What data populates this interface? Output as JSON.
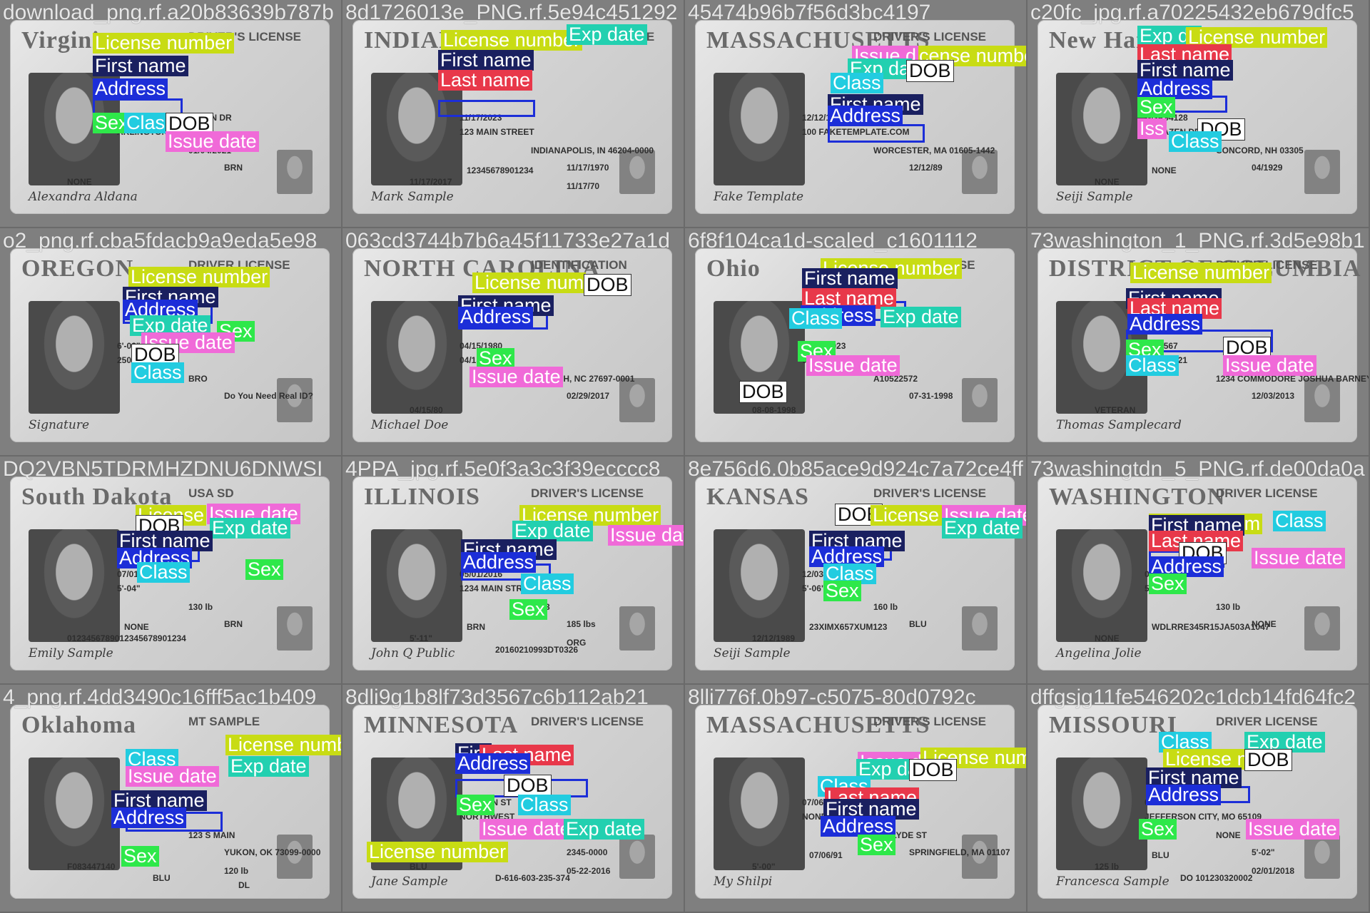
{
  "colors": {
    "license_number": "#c8dc14",
    "first_name": "#1a2060",
    "last_name": "#e8384a",
    "address": "#1c2ed8",
    "sex": "#2ee84a",
    "class": "#22cce0",
    "dob": "#ffffff",
    "issue_date": "#f06ad8",
    "exp_date": "#22d0b0"
  },
  "tiles": [
    {
      "filename": "download_png.rf.a20b83639b787b",
      "card_title": "Virginia",
      "card_sub": "DRIVER'S LICENSE",
      "signature": "Alexandra Aldana",
      "fields": [
        "4150 S. FOUR MILE RUN DR",
        "ARLINGTON, VA 22206",
        "01/04/2021",
        "BRN",
        "NONE"
      ],
      "labels": [
        {
          "cls": "ln",
          "text": "License number"
        },
        {
          "cls": "fn",
          "text": "First name"
        },
        {
          "cls": "ad",
          "text": "Address"
        },
        {
          "cls": "se",
          "text": "Sex"
        },
        {
          "cls": "cl",
          "text": "Class"
        },
        {
          "cls": "dob",
          "text": "DOB"
        },
        {
          "cls": "id",
          "text": "Issue date"
        }
      ]
    },
    {
      "filename": "8d1726013e_PNG.rf.5e94c451292",
      "card_title": "INDIANA",
      "card_sub": "OPERATOR LICENSE",
      "signature": "Mark Sample",
      "fields": [
        "11/17/2023",
        "123 MAIN STREET",
        "INDIANAPOLIS, IN 46204-0000",
        "11/17/1970",
        "11/17/2017",
        "12345678901234",
        "11/17/70"
      ],
      "labels": [
        {
          "cls": "ln",
          "text": "License number"
        },
        {
          "cls": "ed",
          "text": "Exp date"
        },
        {
          "cls": "fn",
          "text": "First name"
        },
        {
          "cls": "la",
          "text": "Last name"
        }
      ]
    },
    {
      "filename": "45474b96b7f56d3bc4197",
      "card_title": "MASSACHUSETTS",
      "card_sub": "DRIVER'S LICENSE",
      "signature": "Fake Template",
      "fields": [
        "12/12/1989",
        "100 FAKETEMPLATE.COM",
        "WORCESTER, MA 01605-1442",
        "12/12/89"
      ],
      "labels": [
        {
          "cls": "ln",
          "text": "License number"
        },
        {
          "cls": "id",
          "text": "Issue d"
        },
        {
          "cls": "ed",
          "text": "Exp da"
        },
        {
          "cls": "dob",
          "text": "DOB"
        },
        {
          "cls": "cl",
          "text": "Class"
        },
        {
          "cls": "fn",
          "text": "First name"
        },
        {
          "cls": "ad",
          "text": "Address"
        }
      ]
    },
    {
      "filename": "c20fc_jpg.rf.a70225432eb679dfc5",
      "card_title": "New Hampshire",
      "card_sub": "DRIVER LICENSE",
      "signature": "Seiji Sample",
      "fields": [
        "GGR94128",
        "23 HAZEN DR",
        "CONCORD, NH 03305",
        "04/1929",
        "NONE",
        "NONE"
      ],
      "labels": [
        {
          "cls": "ed",
          "text": "Exp da"
        },
        {
          "cls": "ln",
          "text": "License number"
        },
        {
          "cls": "la",
          "text": "Last name"
        },
        {
          "cls": "fn",
          "text": "First name"
        },
        {
          "cls": "ad",
          "text": "Address"
        },
        {
          "cls": "se",
          "text": "Sex"
        },
        {
          "cls": "id",
          "text": "Iss"
        },
        {
          "cls": "dob",
          "text": "DOB"
        },
        {
          "cls": "cl",
          "text": "Class"
        }
      ]
    },
    {
      "filename": "o2_png.rf.cba5fdacb9a9eda5e98",
      "card_title": "OREGON",
      "card_sub": "DRIVER LICENSE",
      "signature": "Signature",
      "fields": [
        "6'-02\"",
        "250 lb",
        "BRO",
        "Do You Need Real ID?"
      ],
      "labels": [
        {
          "cls": "ln",
          "text": "License number"
        },
        {
          "cls": "fn",
          "text": "First name"
        },
        {
          "cls": "ad",
          "text": "Address"
        },
        {
          "cls": "ed",
          "text": "Exp date"
        },
        {
          "cls": "se",
          "text": "Sex"
        },
        {
          "cls": "id",
          "text": "Issue date"
        },
        {
          "cls": "dob",
          "text": "DOB"
        },
        {
          "cls": "cl",
          "text": "Class"
        }
      ]
    },
    {
      "filename": "063cd3744b7b6a45f11733e27a1d",
      "card_title": "NORTH CAROLINA",
      "card_sub": "IDENTIFICATION",
      "signature": "Michael Doe",
      "fields": [
        "04/15/1980",
        "04/15/2025",
        "RALEIGH, NC 27697-0001",
        "02/29/2017",
        "04/15/80"
      ],
      "labels": [
        {
          "cls": "ln",
          "text": "License num"
        },
        {
          "cls": "dob",
          "text": "DOB"
        },
        {
          "cls": "fn",
          "text": "First name"
        },
        {
          "cls": "ad",
          "text": "Address"
        },
        {
          "cls": "se",
          "text": "Sex"
        },
        {
          "cls": "id",
          "text": "Issue date"
        }
      ]
    },
    {
      "filename": "6f8f104ca1d-scaled_c1601112",
      "card_title": "Ohio",
      "card_sub": "DRIVER LICENSE",
      "signature": "",
      "fields": [
        "08-08-2023",
        "08-21-2019",
        "A10522572",
        "07-31-1998",
        "08-08-1998"
      ],
      "labels": [
        {
          "cls": "ln",
          "text": "License number"
        },
        {
          "cls": "fn",
          "text": "First name"
        },
        {
          "cls": "la",
          "text": "Last name"
        },
        {
          "cls": "ad",
          "text": "Address"
        },
        {
          "cls": "ed",
          "text": "Exp date"
        },
        {
          "cls": "cl",
          "text": "Class"
        },
        {
          "cls": "se",
          "text": "Sex"
        },
        {
          "cls": "id",
          "text": "Issue date"
        },
        {
          "cls": "dob",
          "text": "DOB"
        }
      ]
    },
    {
      "filename": "73washington_1_PNG.rf.3d5e98b1",
      "card_title": "DISTRICT OF COLUMBIA",
      "card_sub": "DRIVER LICENSE",
      "signature": "Thomas Samplecard",
      "fields": [
        "1234567",
        "02/21/2021",
        "1234 COMMODORE JOSHUA BARNEY DRIVE, NE",
        "12/03/2013",
        "VETERAN"
      ],
      "labels": [
        {
          "cls": "ln",
          "text": "License number"
        },
        {
          "cls": "fn",
          "text": "First name"
        },
        {
          "cls": "la",
          "text": "Last name"
        },
        {
          "cls": "ad",
          "text": "Address"
        },
        {
          "cls": "se",
          "text": "Sex"
        },
        {
          "cls": "cl",
          "text": "Class"
        },
        {
          "cls": "dob",
          "text": "DOB"
        },
        {
          "cls": "id",
          "text": "Issue date"
        }
      ]
    },
    {
      "filename": "DQ2VBN5TDRMHZDNU6DNWSI",
      "card_title": "South Dakota",
      "card_sub": "USA SD",
      "signature": "Emily Sample",
      "fields": [
        "07/01/2014",
        "5'-04\"",
        "130 lb",
        "BRN",
        "0123456789012345678901234",
        "NONE"
      ],
      "labels": [
        {
          "cls": "ln",
          "text": "License"
        },
        {
          "cls": "id",
          "text": "Issue date"
        },
        {
          "cls": "dob",
          "text": "DOB"
        },
        {
          "cls": "ed",
          "text": "Exp date"
        },
        {
          "cls": "fn",
          "text": "First name"
        },
        {
          "cls": "ad",
          "text": "Address"
        },
        {
          "cls": "cl",
          "text": "Class"
        },
        {
          "cls": "se",
          "text": "Sex"
        }
      ]
    },
    {
      "filename": "4PPA_jpg.rf.5e0f3a3c3f39ecccc8",
      "card_title": "ILLINOIS",
      "card_sub": "DRIVER'S LICENSE",
      "signature": "John Q Public",
      "fields": [
        "05/01/2016",
        "1234 MAIN STREET",
        "2723",
        "185 lbs",
        "5'-11\"",
        "BRN",
        "ORG",
        "20160210993DT0326"
      ],
      "labels": [
        {
          "cls": "ln",
          "text": "License number"
        },
        {
          "cls": "ed",
          "text": "Exp date"
        },
        {
          "cls": "id",
          "text": "Issue date"
        },
        {
          "cls": "fn",
          "text": "First name"
        },
        {
          "cls": "ad",
          "text": "Address"
        },
        {
          "cls": "cl",
          "text": "Class"
        },
        {
          "cls": "se",
          "text": "Sex"
        }
      ]
    },
    {
      "filename": "8e756d6.0b85ace9d924c7a72ce4ff",
      "card_title": "KANSAS",
      "card_sub": "DRIVER'S LICENSE",
      "signature": "Seiji Sample",
      "fields": [
        "12/03/2023",
        "5'-06\"",
        "160 lb",
        "BLU",
        "12/12/1989",
        "23XIMX657XUM123"
      ],
      "labels": [
        {
          "cls": "dob",
          "text": "DOB"
        },
        {
          "cls": "ln",
          "text": "License nu"
        },
        {
          "cls": "id",
          "text": "Issue date"
        },
        {
          "cls": "ed",
          "text": "Exp date"
        },
        {
          "cls": "fn",
          "text": "First name"
        },
        {
          "cls": "ad",
          "text": "Address"
        },
        {
          "cls": "cl",
          "text": "Class"
        },
        {
          "cls": "se",
          "text": "Sex"
        }
      ]
    },
    {
      "filename": "73washingtdn_5_PNG.rf.de00da0a",
      "card_title": "WASHINGTON",
      "card_sub": "DRIVER LICENSE",
      "signature": "Angelina Jolie",
      "fields": [
        "06/04/2020",
        "5'-07\"",
        "130 lb",
        "NONE",
        "NONE",
        "WDLRRE345R15JA503A1047"
      ],
      "labels": [
        {
          "cls": "ln",
          "text": "License num"
        },
        {
          "cls": "cl",
          "text": "Class"
        },
        {
          "cls": "fn",
          "text": "First name"
        },
        {
          "cls": "la",
          "text": "Last name"
        },
        {
          "cls": "dob",
          "text": "DOB"
        },
        {
          "cls": "id",
          "text": "Issue date"
        },
        {
          "cls": "ad",
          "text": "Address"
        },
        {
          "cls": "se",
          "text": "Sex"
        }
      ]
    },
    {
      "filename": "4_png.rf.4dd3490c16fff5ac1b409",
      "card_title": "Oklahoma",
      "card_sub": "MT SAMPLE",
      "signature": "",
      "fields": [
        "08/31/2016",
        "NONE",
        "123 S MAIN",
        "YUKON, OK 73099-0000",
        "F083447140",
        "5'-03\"",
        "120 lb",
        "BLU",
        "DL"
      ],
      "labels": [
        {
          "cls": "ln",
          "text": "License number"
        },
        {
          "cls": "cl",
          "text": "Class"
        },
        {
          "cls": "id",
          "text": "Issue date"
        },
        {
          "cls": "ed",
          "text": "Exp date"
        },
        {
          "cls": "fn",
          "text": "First name"
        },
        {
          "cls": "ad",
          "text": "Address"
        },
        {
          "cls": "se",
          "text": "Sex"
        }
      ]
    },
    {
      "filename": "8dli9g1b8lf73d3567c6b112ab21",
      "card_title": "MINNESOTA",
      "card_sub": "DRIVER'S LICENSE",
      "signature": "Jane Sample",
      "fields": [
        "123 MAIN ST",
        "NORTHWEST",
        "MINNEAPO",
        "2345-0000",
        "BLU",
        "5-08",
        "05-22-2016",
        "D-616-603-235-374"
      ],
      "labels": [
        {
          "cls": "fn",
          "text": "Firs"
        },
        {
          "cls": "la",
          "text": "Last name"
        },
        {
          "cls": "ad",
          "text": "Address"
        },
        {
          "cls": "dob",
          "text": "DOB"
        },
        {
          "cls": "se",
          "text": "Sex"
        },
        {
          "cls": "cl",
          "text": "Class"
        },
        {
          "cls": "id",
          "text": "Issue date"
        },
        {
          "cls": "ed",
          "text": "Exp date"
        },
        {
          "cls": "ln",
          "text": "License number"
        }
      ]
    },
    {
      "filename": "8lli776f.0b97-c5075-80d0792c",
      "card_title": "MASSACHUSETTS",
      "card_sub": "DRIVER'S LICENSE",
      "signature": "My Shilpi",
      "fields": [
        "07/06/1991",
        "NONE",
        "55 CLYDE ST",
        "SPRINGFIELD, MA 01107",
        "5'-00\"",
        "07/06/91"
      ],
      "labels": [
        {
          "cls": "id",
          "text": "Issue d"
        },
        {
          "cls": "ln",
          "text": "License number"
        },
        {
          "cls": "ed",
          "text": "Exp da"
        },
        {
          "cls": "dob",
          "text": "DOB"
        },
        {
          "cls": "cl",
          "text": "Class"
        },
        {
          "cls": "la",
          "text": "Last name"
        },
        {
          "cls": "fn",
          "text": "First name"
        },
        {
          "cls": "ad",
          "text": "Address"
        },
        {
          "cls": "se",
          "text": "Sex"
        }
      ]
    },
    {
      "filename": "dffgsjg11fe546202c1dcb14fd64fc2",
      "card_title": "MISSOURI",
      "card_sub": "DRIVER LICENSE",
      "signature": "Francesca Sample",
      "fields": [
        "02/01/1973",
        "JEFFERSON CITY, MO 65109",
        "NONE",
        "5'-02\"",
        "125 lb",
        "BLU",
        "02/01/2018",
        "DO 101230320002"
      ],
      "labels": [
        {
          "cls": "cl",
          "text": "Class"
        },
        {
          "cls": "ed",
          "text": "Exp date"
        },
        {
          "cls": "ln",
          "text": "License n"
        },
        {
          "cls": "dob",
          "text": "DOB"
        },
        {
          "cls": "fn",
          "text": "First name"
        },
        {
          "cls": "ad",
          "text": "Address"
        },
        {
          "cls": "se",
          "text": "Sex"
        },
        {
          "cls": "id",
          "text": "Issue date"
        }
      ]
    }
  ]
}
